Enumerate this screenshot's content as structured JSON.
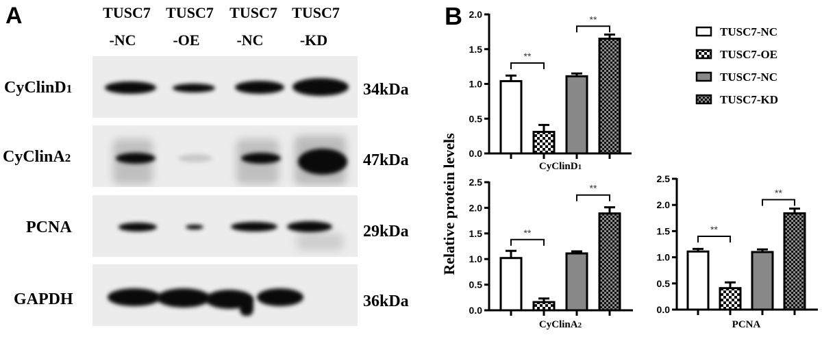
{
  "panelA": {
    "letter": "A",
    "lanes": [
      {
        "line1": "TUSC7",
        "line2": "-NC"
      },
      {
        "line1": "TUSC7",
        "line2": "-OE"
      },
      {
        "line1": "TUSC7",
        "line2": "-NC"
      },
      {
        "line1": "TUSC7",
        "line2": "-KD"
      }
    ],
    "blots": [
      {
        "protein": "CyClinD",
        "subscript": "1",
        "kda": "34kDa"
      },
      {
        "protein": "CyClinA",
        "subscript": "2",
        "kda": "47kDa"
      },
      {
        "protein": "PCNA",
        "subscript": "",
        "kda": "29kDa"
      },
      {
        "protein": "GAPDH",
        "subscript": "",
        "kda": "36kDa"
      }
    ]
  },
  "panelB": {
    "letter": "B",
    "ylabel": "Relative protein levels",
    "legend": [
      {
        "label": "TUSC7-NC",
        "pattern": "white"
      },
      {
        "label": "TUSC7-OE",
        "pattern": "checker-white"
      },
      {
        "label": "TUSC7-NC",
        "pattern": "gray"
      },
      {
        "label": "TUSC7-KD",
        "pattern": "checker-gray"
      }
    ],
    "significance": "**"
  },
  "colors": {
    "gray_bar": "#888888",
    "checker_dark": "#111111",
    "checker_light_kd": "#8c8c8c",
    "axis": "#000000"
  },
  "chart_data": [
    {
      "type": "bar",
      "title": "",
      "xlabel": "CyClinD1",
      "ylabel": "Relative protein levels",
      "categories": [
        "TUSC7-NC",
        "TUSC7-OE",
        "TUSC7-NC",
        "TUSC7-KD"
      ],
      "values": [
        1.04,
        0.31,
        1.11,
        1.65
      ],
      "errors": [
        0.08,
        0.1,
        0.04,
        0.06
      ],
      "ylim": [
        0,
        2.0
      ],
      "yticks": [
        "0.0",
        "0.5",
        "1.0",
        "1.5",
        "2.0"
      ],
      "ytick_values": [
        0,
        0.5,
        1.0,
        1.5,
        2.0
      ],
      "significance": [
        {
          "between": [
            0,
            1
          ],
          "label": "**",
          "y": 1.3
        },
        {
          "between": [
            2,
            3
          ],
          "label": "**",
          "y": 1.83
        }
      ],
      "grid": false
    },
    {
      "type": "bar",
      "title": "",
      "xlabel": "CyClinA2",
      "ylabel": "Relative protein levels",
      "categories": [
        "TUSC7-NC",
        "TUSC7-OE",
        "TUSC7-NC",
        "TUSC7-KD"
      ],
      "values": [
        1.02,
        0.16,
        1.11,
        1.89
      ],
      "errors": [
        0.14,
        0.07,
        0.04,
        0.12
      ],
      "ylim": [
        0,
        2.5
      ],
      "yticks": [
        "0.0",
        "0.5",
        "1.0",
        "1.5",
        "2.0",
        "2.5"
      ],
      "ytick_values": [
        0,
        0.5,
        1.0,
        1.5,
        2.0,
        2.5
      ],
      "significance": [
        {
          "between": [
            0,
            1
          ],
          "label": "**",
          "y": 1.38
        },
        {
          "between": [
            2,
            3
          ],
          "label": "**",
          "y": 2.25
        }
      ],
      "grid": false
    },
    {
      "type": "bar",
      "title": "",
      "xlabel": "PCNA",
      "ylabel": "Relative protein levels",
      "categories": [
        "TUSC7-NC",
        "TUSC7-OE",
        "TUSC7-NC",
        "TUSC7-KD"
      ],
      "values": [
        1.11,
        0.41,
        1.1,
        1.84
      ],
      "errors": [
        0.05,
        0.11,
        0.05,
        0.09
      ],
      "ylim": [
        0,
        2.5
      ],
      "yticks": [
        "0.0",
        "0.5",
        "1.0",
        "1.5",
        "2.0",
        "2.5"
      ],
      "ytick_values": [
        0,
        0.5,
        1.0,
        1.5,
        2.0,
        2.5
      ],
      "significance": [
        {
          "between": [
            0,
            1
          ],
          "label": "**",
          "y": 1.4
        },
        {
          "between": [
            2,
            3
          ],
          "label": "**",
          "y": 2.1
        }
      ],
      "grid": false
    }
  ]
}
